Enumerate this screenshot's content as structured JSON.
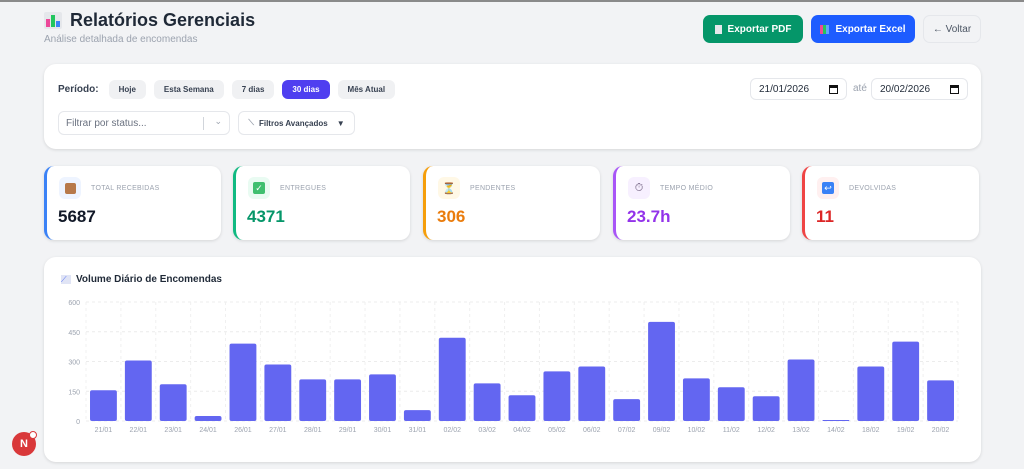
{
  "header": {
    "title": "Relatórios Gerenciais",
    "subtitle": "Análise detalhada de encomendas",
    "icon": "bar-chart-icon",
    "export_pdf": "Exportar PDF",
    "export_excel": "Exportar Excel",
    "back": "← Voltar"
  },
  "filters": {
    "period_label": "Período:",
    "periods": [
      "Hoje",
      "Esta Semana",
      "7 dias",
      "30 dias",
      "Mês Atual"
    ],
    "active_period": "30 dias",
    "status_placeholder": "Filtrar por status...",
    "advanced": "Filtros Avançados",
    "advanced_arrow": "▼",
    "date_from": "21/01/2026",
    "date_sep": "até",
    "date_to": "20/02/2026"
  },
  "stats": [
    {
      "label": "TOTAL RECEBIDAS",
      "value": "5687",
      "color": "#3b82f6",
      "icon": "package-icon"
    },
    {
      "label": "ENTREGUES",
      "value": "4371",
      "color": "#059669",
      "icon": "check-icon"
    },
    {
      "label": "PENDENTES",
      "value": "306",
      "color": "#ea7c0c",
      "icon": "hourglass-icon"
    },
    {
      "label": "TEMPO MÉDIO",
      "value": "23.7h",
      "color": "#9333ea",
      "icon": "stopwatch-icon"
    },
    {
      "label": "DEVOLVIDAS",
      "value": "11",
      "color": "#dc2626",
      "icon": "return-icon"
    }
  ],
  "chart_data": {
    "type": "bar",
    "title": "Volume Diário de Encomendas",
    "ylim": [
      0,
      600
    ],
    "yticks": [
      0,
      150,
      300,
      450,
      600
    ],
    "grid": true,
    "color": "#6366f1",
    "categories": [
      "21/01",
      "22/01",
      "23/01",
      "24/01",
      "26/01",
      "27/01",
      "28/01",
      "29/01",
      "30/01",
      "31/01",
      "02/02",
      "03/02",
      "04/02",
      "05/02",
      "06/02",
      "07/02",
      "09/02",
      "10/02",
      "11/02",
      "12/02",
      "13/02",
      "14/02",
      "18/02",
      "19/02",
      "20/02"
    ],
    "values": [
      155,
      305,
      185,
      25,
      390,
      285,
      210,
      210,
      235,
      55,
      420,
      190,
      130,
      250,
      275,
      110,
      500,
      215,
      170,
      125,
      310,
      2,
      275,
      400,
      205
    ]
  }
}
